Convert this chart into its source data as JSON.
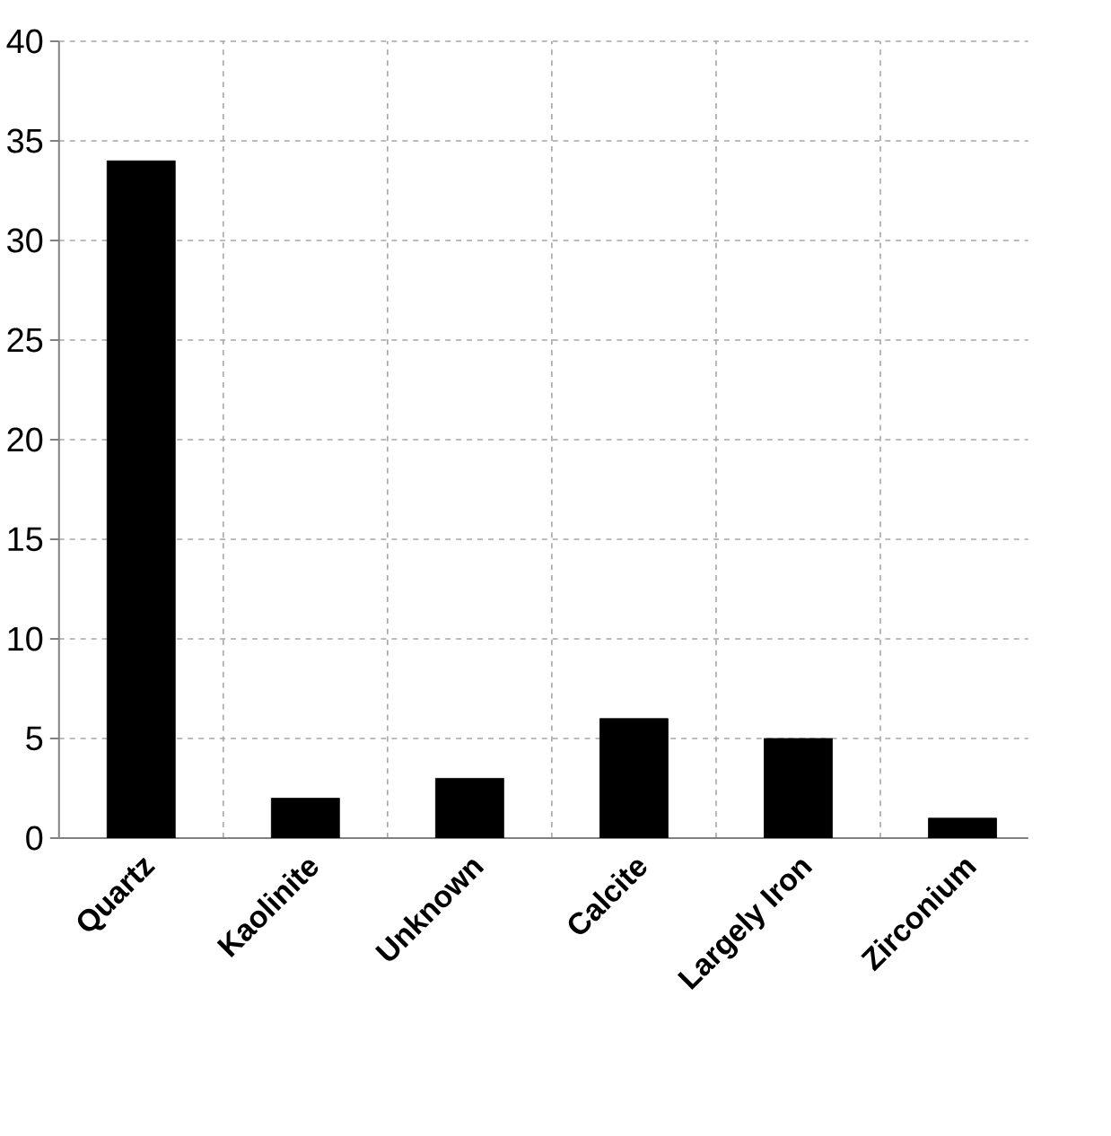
{
  "chart_data": {
    "type": "bar",
    "categories": [
      "Quartz",
      "Kaolinite",
      "Unknown",
      "Calcite",
      "Largely Iron",
      "Zirconium"
    ],
    "values": [
      34,
      2,
      3,
      6,
      5,
      1
    ],
    "color": "#000000",
    "ylim": [
      0,
      40
    ],
    "yticks": [
      0,
      5,
      10,
      15,
      20,
      25,
      30,
      35,
      40
    ],
    "grid": true
  }
}
